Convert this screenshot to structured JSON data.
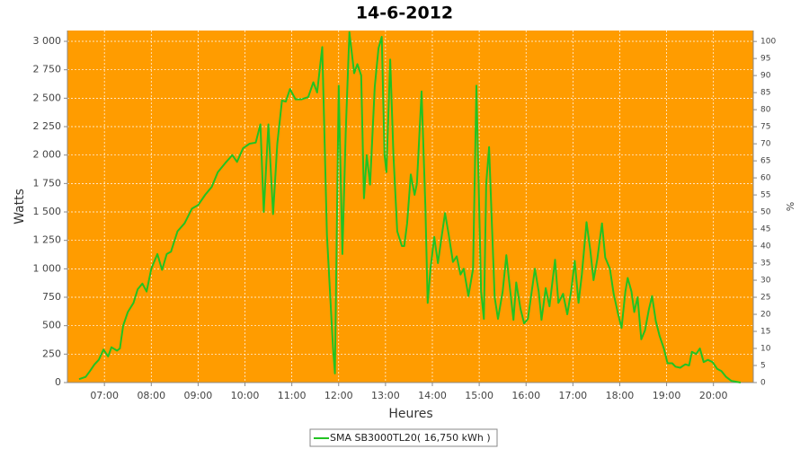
{
  "chart_data": {
    "type": "line",
    "title": "14-6-2012",
    "x_label": "Heures",
    "y_label": "Watts",
    "y2_label": "%",
    "x": [
      6.46,
      6.6,
      6.69,
      6.79,
      6.88,
      6.98,
      7.08,
      7.15,
      7.27,
      7.33,
      7.4,
      7.5,
      7.62,
      7.71,
      7.81,
      7.9,
      8.0,
      8.13,
      8.23,
      8.33,
      8.42,
      8.56,
      8.71,
      8.87,
      9.0,
      9.15,
      9.29,
      9.42,
      9.58,
      9.73,
      9.83,
      9.96,
      10.1,
      10.23,
      10.33,
      10.4,
      10.5,
      10.6,
      10.69,
      10.79,
      10.87,
      10.96,
      11.08,
      11.21,
      11.35,
      11.46,
      11.54,
      11.65,
      11.75,
      11.88,
      11.92,
      12.0,
      12.08,
      12.15,
      12.23,
      12.33,
      12.4,
      12.48,
      12.54,
      12.6,
      12.67,
      12.77,
      12.85,
      12.92,
      12.98,
      13.02,
      13.1,
      13.17,
      13.25,
      13.35,
      13.4,
      13.46,
      13.54,
      13.62,
      13.67,
      13.77,
      13.85,
      13.9,
      13.96,
      14.04,
      14.12,
      14.19,
      14.27,
      14.35,
      14.44,
      14.52,
      14.6,
      14.67,
      14.77,
      14.87,
      14.94,
      15.04,
      15.1,
      15.15,
      15.21,
      15.27,
      15.33,
      15.4,
      15.5,
      15.58,
      15.65,
      15.73,
      15.79,
      15.88,
      15.96,
      16.04,
      16.12,
      16.19,
      16.27,
      16.33,
      16.42,
      16.5,
      16.62,
      16.69,
      16.79,
      16.88,
      16.96,
      17.04,
      17.12,
      17.19,
      17.29,
      17.37,
      17.44,
      17.52,
      17.62,
      17.69,
      17.79,
      17.87,
      17.96,
      18.04,
      18.12,
      18.17,
      18.25,
      18.31,
      18.38,
      18.46,
      18.54,
      18.62,
      18.69,
      18.77,
      18.85,
      18.94,
      19.02,
      19.12,
      19.19,
      19.29,
      19.4,
      19.48,
      19.54,
      19.63,
      19.71,
      19.79,
      19.88,
      19.98,
      20.08,
      20.17,
      20.27,
      20.38,
      20.58
    ],
    "series": [
      {
        "name": "SMA SB3000TL20( 16,750 kWh )",
        "color": "#22c322",
        "axis": "y",
        "values": [
          30,
          50,
          100,
          160,
          200,
          290,
          230,
          310,
          280,
          300,
          500,
          620,
          700,
          820,
          870,
          800,
          1000,
          1130,
          990,
          1130,
          1150,
          1330,
          1400,
          1530,
          1560,
          1650,
          1720,
          1850,
          1930,
          2000,
          1940,
          2060,
          2100,
          2110,
          2270,
          1500,
          2270,
          1480,
          2100,
          2480,
          2470,
          2580,
          2490,
          2490,
          2510,
          2640,
          2550,
          2950,
          1300,
          300,
          80,
          2610,
          1130,
          2200,
          3080,
          2720,
          2800,
          2700,
          1620,
          2000,
          1740,
          2600,
          2940,
          3040,
          2000,
          1850,
          2840,
          2000,
          1330,
          1200,
          1200,
          1400,
          1830,
          1650,
          1750,
          2560,
          1550,
          700,
          1000,
          1280,
          1050,
          1260,
          1490,
          1300,
          1060,
          1110,
          950,
          1000,
          760,
          1000,
          2610,
          800,
          560,
          1750,
          2070,
          1400,
          750,
          560,
          800,
          1120,
          850,
          550,
          880,
          650,
          520,
          560,
          800,
          1000,
          800,
          550,
          830,
          670,
          1080,
          700,
          780,
          600,
          800,
          1070,
          700,
          950,
          1410,
          1170,
          900,
          1080,
          1400,
          1100,
          1000,
          780,
          610,
          480,
          800,
          920,
          800,
          620,
          750,
          380,
          460,
          640,
          760,
          540,
          410,
          300,
          170,
          170,
          140,
          130,
          160,
          150,
          270,
          250,
          300,
          180,
          200,
          180,
          120,
          100,
          50,
          15,
          0
        ]
      }
    ],
    "xlim": [
      6.21,
      20.85
    ],
    "xticks": [
      {
        "value": 7,
        "label": "07:00"
      },
      {
        "value": 8,
        "label": "08:00"
      },
      {
        "value": 9,
        "label": "09:00"
      },
      {
        "value": 10,
        "label": "10:00"
      },
      {
        "value": 11,
        "label": "11:00"
      },
      {
        "value": 12,
        "label": "12:00"
      },
      {
        "value": 13,
        "label": "13:00"
      },
      {
        "value": 14,
        "label": "14:00"
      },
      {
        "value": 15,
        "label": "15:00"
      },
      {
        "value": 16,
        "label": "16:00"
      },
      {
        "value": 17,
        "label": "17:00"
      },
      {
        "value": 18,
        "label": "18:00"
      },
      {
        "value": 19,
        "label": "19:00"
      },
      {
        "value": 20,
        "label": "20:00"
      }
    ],
    "ylim": [
      0,
      3095
    ],
    "yticks": [
      0,
      250,
      500,
      750,
      {
        "value": 1000,
        "label": "1 000"
      },
      {
        "value": 1250,
        "label": "1 250"
      },
      {
        "value": 1500,
        "label": "1 500"
      },
      {
        "value": 1750,
        "label": "1 750"
      },
      {
        "value": 2000,
        "label": "2 000"
      },
      {
        "value": 2250,
        "label": "2 250"
      },
      {
        "value": 2500,
        "label": "2 500"
      },
      {
        "value": 2750,
        "label": "2 750"
      },
      {
        "value": 3000,
        "label": "3 000"
      }
    ],
    "y2lim": [
      0,
      103.2
    ],
    "y2ticks": [
      0,
      5,
      10,
      15,
      20,
      25,
      30,
      35,
      40,
      45,
      50,
      55,
      60,
      65,
      70,
      75,
      80,
      85,
      90,
      95,
      100
    ],
    "grid": true,
    "background": "#ff9c00",
    "legend": "bottom"
  }
}
